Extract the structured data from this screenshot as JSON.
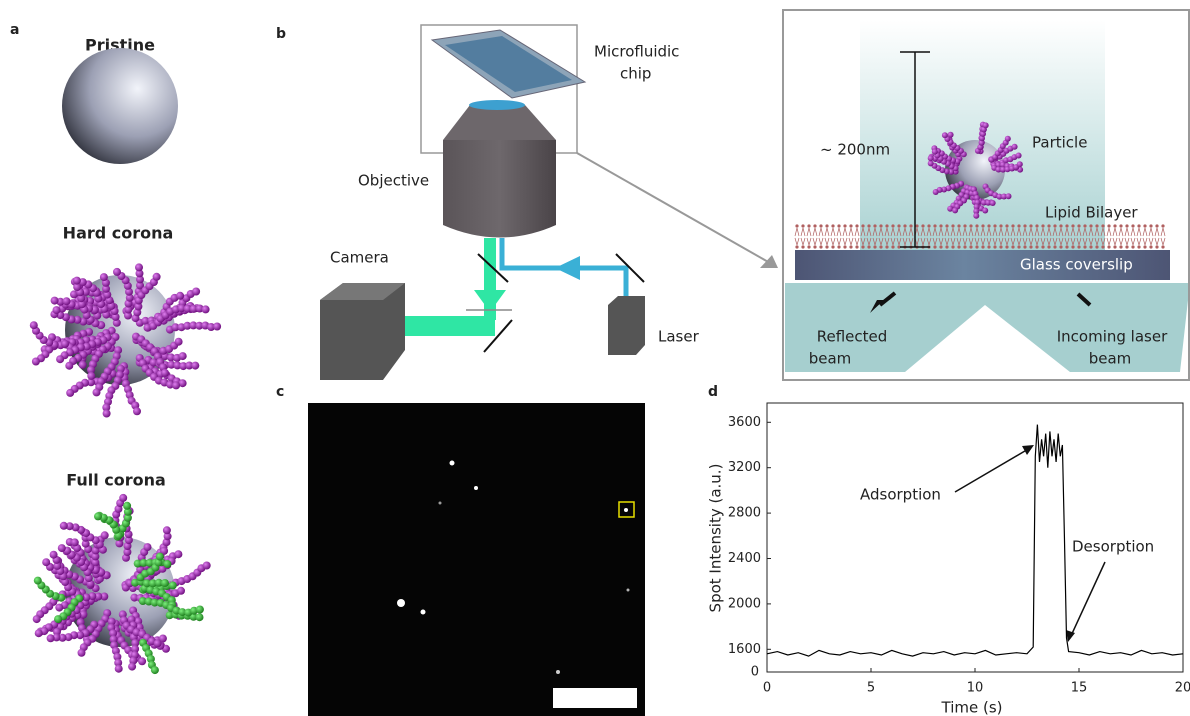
{
  "panel_labels": [
    "a",
    "b",
    "c",
    "d"
  ],
  "panel_a": {
    "labels": [
      "Pristine",
      "Hard corona",
      "Full corona"
    ]
  },
  "panel_b": {
    "microfluidic_chip": [
      "Microfluidic",
      "chip"
    ],
    "objective": "Objective",
    "camera": "Camera",
    "laser": "Laser",
    "distance": "~ 200nm",
    "particle": "Particle",
    "lipid_bilayer": "Lipid Bilayer",
    "glass_coverslip": "Glass coverslip",
    "reflected_beam": [
      "Reflected",
      "beam"
    ],
    "incoming_beam": [
      "Incoming laser",
      "beam"
    ]
  },
  "chart_data": {
    "type": "line",
    "xlabel": "Time (s)",
    "ylabel": "Spot Intensity (a.u.)",
    "x": [
      0,
      0.5,
      1,
      1.5,
      2,
      2.5,
      3,
      3.5,
      4,
      4.5,
      5,
      5.5,
      6,
      6.5,
      7,
      7.5,
      8,
      8.5,
      9,
      9.5,
      10,
      10.5,
      11,
      11.5,
      12,
      12.5,
      12.8,
      12.9,
      13.0,
      13.1,
      13.2,
      13.3,
      13.4,
      13.5,
      13.6,
      13.7,
      13.8,
      13.9,
      14.0,
      14.1,
      14.2,
      14.3,
      14.4,
      14.5,
      15,
      15.5,
      16,
      16.5,
      17,
      17.5,
      18,
      18.5,
      19,
      19.5,
      20
    ],
    "values": [
      1560,
      1580,
      1550,
      1570,
      1540,
      1590,
      1560,
      1550,
      1580,
      1560,
      1570,
      1550,
      1590,
      1560,
      1540,
      1570,
      1560,
      1580,
      1550,
      1570,
      1560,
      1590,
      1550,
      1560,
      1570,
      1560,
      1620,
      3300,
      3580,
      3250,
      3450,
      3300,
      3500,
      3200,
      3520,
      3300,
      3450,
      3250,
      3500,
      3300,
      3400,
      2600,
      1700,
      1580,
      1570,
      1550,
      1580,
      1560,
      1570,
      1550,
      1590,
      1560,
      1570,
      1550,
      1560
    ],
    "color": "#000000",
    "xlim": [
      0,
      20
    ],
    "xticks": [
      0,
      5,
      10,
      15,
      20
    ],
    "ylim": [
      1400,
      3770
    ],
    "yticks": [
      1600,
      2000,
      2400,
      2800,
      3200,
      3600
    ],
    "axis_break_label": "0",
    "annotations": [
      "Adsorption",
      "Desorption"
    ]
  }
}
